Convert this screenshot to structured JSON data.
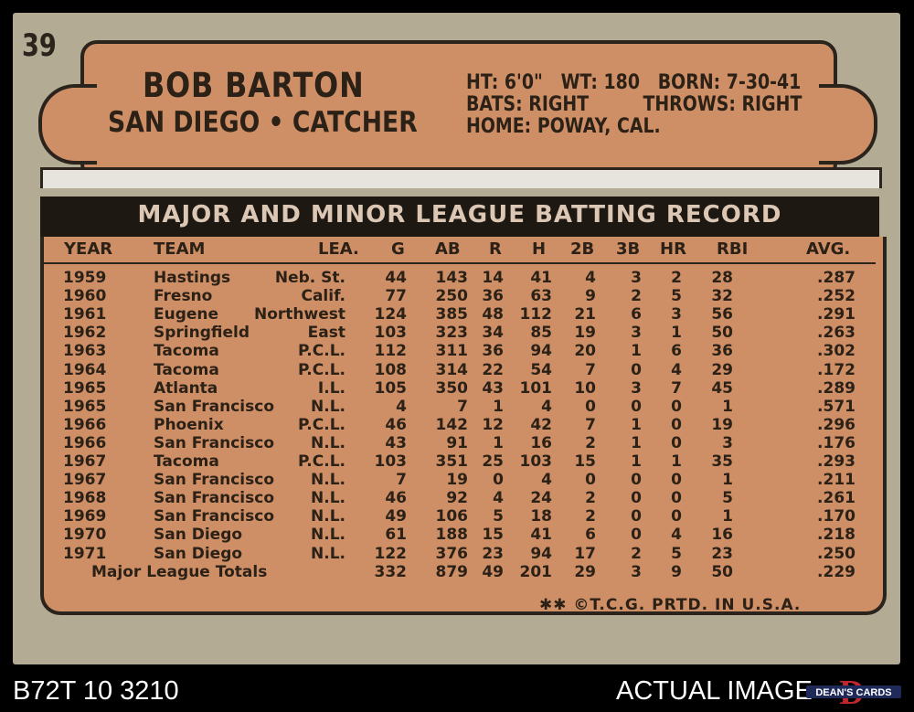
{
  "card": {
    "number": "39",
    "name": "BOB BARTON",
    "team_position": "SAN DIEGO • CATCHER",
    "bio": {
      "line1": "HT: 6'0\"   WT: 180   BORN: 7-30-41",
      "line2": "BATS: RIGHT         THROWS: RIGHT",
      "line3": "HOME: POWAY, CAL."
    },
    "record_title": "MAJOR AND MINOR LEAGUE BATTING RECORD",
    "columns": [
      "YEAR",
      "TEAM",
      "LEA.",
      "G",
      "AB",
      "R",
      "H",
      "2B",
      "3B",
      "HR",
      "RBI",
      "AVG."
    ],
    "rows": [
      [
        "1959",
        "Hastings",
        "Neb. St.",
        "44",
        "143",
        "14",
        "41",
        "4",
        "3",
        "2",
        "28",
        ".287"
      ],
      [
        "1960",
        "Fresno",
        "Calif.",
        "77",
        "250",
        "36",
        "63",
        "9",
        "2",
        "5",
        "32",
        ".252"
      ],
      [
        "1961",
        "Eugene",
        "Northwest",
        "124",
        "385",
        "48",
        "112",
        "21",
        "6",
        "3",
        "56",
        ".291"
      ],
      [
        "1962",
        "Springfield",
        "East",
        "103",
        "323",
        "34",
        "85",
        "19",
        "3",
        "1",
        "50",
        ".263"
      ],
      [
        "1963",
        "Tacoma",
        "P.C.L.",
        "112",
        "311",
        "36",
        "94",
        "20",
        "1",
        "6",
        "36",
        ".302"
      ],
      [
        "1964",
        "Tacoma",
        "P.C.L.",
        "108",
        "314",
        "22",
        "54",
        "7",
        "0",
        "4",
        "29",
        ".172"
      ],
      [
        "1965",
        "Atlanta",
        "I.L.",
        "105",
        "350",
        "43",
        "101",
        "10",
        "3",
        "7",
        "45",
        ".289"
      ],
      [
        "1965",
        "San Francisco",
        "N.L.",
        "4",
        "7",
        "1",
        "4",
        "0",
        "0",
        "0",
        "1",
        ".571"
      ],
      [
        "1966",
        "Phoenix",
        "P.C.L.",
        "46",
        "142",
        "12",
        "42",
        "7",
        "1",
        "0",
        "19",
        ".296"
      ],
      [
        "1966",
        "San Francisco",
        "N.L.",
        "43",
        "91",
        "1",
        "16",
        "2",
        "1",
        "0",
        "3",
        ".176"
      ],
      [
        "1967",
        "Tacoma",
        "P.C.L.",
        "103",
        "351",
        "25",
        "103",
        "15",
        "1",
        "1",
        "35",
        ".293"
      ],
      [
        "1967",
        "San Francisco",
        "N.L.",
        "7",
        "19",
        "0",
        "4",
        "0",
        "0",
        "0",
        "1",
        ".211"
      ],
      [
        "1968",
        "San Francisco",
        "N.L.",
        "46",
        "92",
        "4",
        "24",
        "2",
        "0",
        "0",
        "5",
        ".261"
      ],
      [
        "1969",
        "San Francisco",
        "N.L.",
        "49",
        "106",
        "5",
        "18",
        "2",
        "0",
        "0",
        "1",
        ".170"
      ],
      [
        "1970",
        "San Diego",
        "N.L.",
        "61",
        "188",
        "15",
        "41",
        "6",
        "0",
        "4",
        "16",
        ".218"
      ],
      [
        "1971",
        "San Diego",
        "N.L.",
        "122",
        "376",
        "23",
        "94",
        "17",
        "2",
        "5",
        "23",
        ".250"
      ]
    ],
    "totals": {
      "label": "Major League Totals",
      "values": [
        "332",
        "879",
        "49",
        "201",
        "29",
        "3",
        "9",
        "50",
        ".229"
      ]
    },
    "footer": "✱✱ ©T.C.G. PRTD. IN U.S.A."
  },
  "caption": {
    "left": "B72T 10 3210",
    "right": "ACTUAL IMAGE"
  },
  "logo": {
    "text": "DEAN'S CARDS",
    "colors": {
      "red": "#c0272d",
      "navy": "#1f2a5a"
    }
  }
}
